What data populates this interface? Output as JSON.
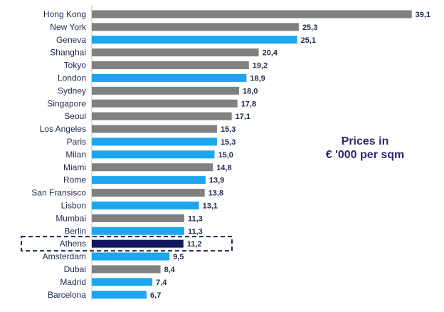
{
  "chart_data": {
    "type": "bar",
    "orientation": "horizontal",
    "categories": [
      "Hong Kong",
      "New York",
      "Geneva",
      "Shanghai",
      "Tokyo",
      "London",
      "Sydney",
      "Singapore",
      "Seoul",
      "Los Angeles",
      "Paris",
      "Milan",
      "Miami",
      "Rome",
      "San Fransisco",
      "Lisbon",
      "Mumbai",
      "Berlin",
      "Athens",
      "Amsterdam",
      "Dubai",
      "Madrid",
      "Barcelona"
    ],
    "values": [
      39.1,
      25.3,
      25.1,
      20.4,
      19.2,
      18.9,
      18.0,
      17.8,
      17.1,
      15.3,
      15.3,
      15.0,
      14.8,
      13.9,
      13.8,
      13.1,
      11.3,
      11.3,
      11.2,
      9.5,
      8.4,
      7.4,
      6.7
    ],
    "value_labels": [
      "39,1",
      "25,3",
      "25,1",
      "20,4",
      "19,2",
      "18,9",
      "18,0",
      "17,8",
      "17,1",
      "15,3",
      "15,3",
      "15,0",
      "14,8",
      "13,9",
      "13,8",
      "13,1",
      "11,3",
      "11,3",
      "11,2",
      "9,5",
      "8,4",
      "7,4",
      "6,7"
    ],
    "bar_groups": [
      "other",
      "other",
      "europe",
      "other",
      "other",
      "europe",
      "other",
      "other",
      "other",
      "other",
      "europe",
      "europe",
      "other",
      "europe",
      "other",
      "europe",
      "other",
      "europe",
      "highlight",
      "europe",
      "other",
      "europe",
      "europe"
    ],
    "colors": {
      "europe": "#1ba6ee",
      "other": "#808080",
      "highlight": "#141660",
      "frame": "#1f2a4d",
      "axis": "#bfbfbf"
    },
    "highlight_category": "Athens",
    "annotation": [
      "Prices in",
      "€ '000 per sqm"
    ],
    "xlim": [
      0,
      40
    ],
    "title": "",
    "xlabel": "",
    "ylabel": "",
    "grid": false,
    "legend": "none"
  }
}
